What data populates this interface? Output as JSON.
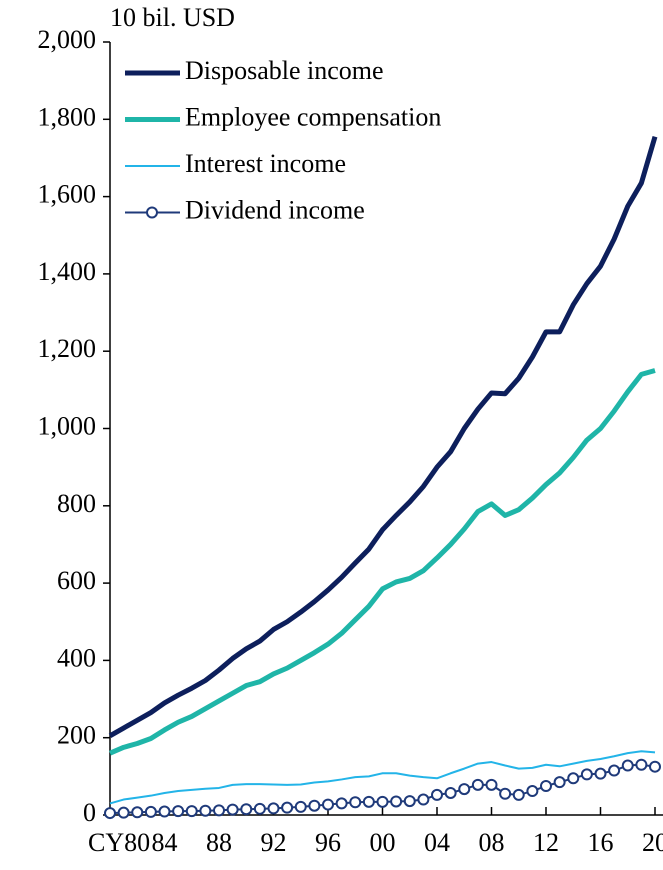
{
  "chart_data": {
    "type": "line",
    "unit_label": "10 bil. USD",
    "x": [
      1980,
      1981,
      1982,
      1983,
      1984,
      1985,
      1986,
      1987,
      1988,
      1989,
      1990,
      1991,
      1992,
      1993,
      1994,
      1995,
      1996,
      1997,
      1998,
      1999,
      2000,
      2001,
      2002,
      2003,
      2004,
      2005,
      2006,
      2007,
      2008,
      2009,
      2010,
      2011,
      2012,
      2013,
      2014,
      2015,
      2016,
      2017,
      2018,
      2019,
      2020
    ],
    "series": [
      {
        "name": "Disposable income",
        "color": "#0d1f5c",
        "width": 5,
        "values": [
          205,
          225,
          245,
          265,
          290,
          310,
          328,
          348,
          375,
          405,
          430,
          450,
          480,
          500,
          525,
          552,
          582,
          615,
          652,
          688,
          738,
          775,
          810,
          850,
          900,
          940,
          1000,
          1050,
          1092,
          1090,
          1130,
          1185,
          1250,
          1250,
          1320,
          1375,
          1420,
          1490,
          1575,
          1635,
          1755
        ]
      },
      {
        "name": "Employee compensation",
        "color": "#1fb5a8",
        "width": 5,
        "values": [
          160,
          175,
          185,
          198,
          220,
          240,
          255,
          275,
          295,
          315,
          335,
          345,
          365,
          380,
          400,
          420,
          442,
          470,
          505,
          540,
          585,
          603,
          612,
          632,
          665,
          700,
          740,
          785,
          805,
          775,
          790,
          820,
          855,
          885,
          925,
          970,
          1000,
          1045,
          1095,
          1140,
          1150
        ]
      },
      {
        "name": "Interest income",
        "color": "#23b4e8",
        "width": 2,
        "values": [
          30,
          40,
          45,
          50,
          57,
          62,
          65,
          68,
          70,
          78,
          80,
          80,
          79,
          78,
          79,
          84,
          87,
          92,
          98,
          100,
          108,
          108,
          102,
          98,
          95,
          108,
          120,
          133,
          137,
          128,
          120,
          122,
          130,
          126,
          133,
          140,
          145,
          152,
          160,
          165,
          162
        ]
      },
      {
        "name": "Dividend income",
        "color": "#1f3a7a",
        "width": 2,
        "marker": "circle",
        "values": [
          5,
          6,
          7,
          8,
          9,
          10,
          10,
          11,
          12,
          14,
          15,
          16,
          17,
          19,
          21,
          24,
          27,
          30,
          33,
          34,
          34,
          35,
          36,
          40,
          52,
          57,
          67,
          78,
          78,
          55,
          52,
          62,
          75,
          85,
          95,
          105,
          107,
          115,
          128,
          130,
          125
        ]
      }
    ],
    "xlim": [
      1980,
      2020
    ],
    "xticks": [
      {
        "value": 1980,
        "label": "CY80"
      },
      {
        "value": 1984,
        "label": "84"
      },
      {
        "value": 1988,
        "label": "88"
      },
      {
        "value": 1992,
        "label": "92"
      },
      {
        "value": 1996,
        "label": "96"
      },
      {
        "value": 2000,
        "label": "00"
      },
      {
        "value": 2004,
        "label": "04"
      },
      {
        "value": 2008,
        "label": "08"
      },
      {
        "value": 2012,
        "label": "12"
      },
      {
        "value": 2016,
        "label": "16"
      },
      {
        "value": 2020,
        "label": "20"
      }
    ],
    "ylim": [
      0,
      2000
    ],
    "yticks": [
      0,
      200,
      400,
      600,
      800,
      {
        "value": 1000,
        "label": "1,000"
      },
      {
        "value": 1200,
        "label": "1,200"
      },
      {
        "value": 1400,
        "label": "1,400"
      },
      {
        "value": 1600,
        "label": "1,600"
      },
      {
        "value": 1800,
        "label": "1,800"
      },
      {
        "value": 2000,
        "label": "2,000"
      }
    ],
    "legend": "upper-left"
  }
}
